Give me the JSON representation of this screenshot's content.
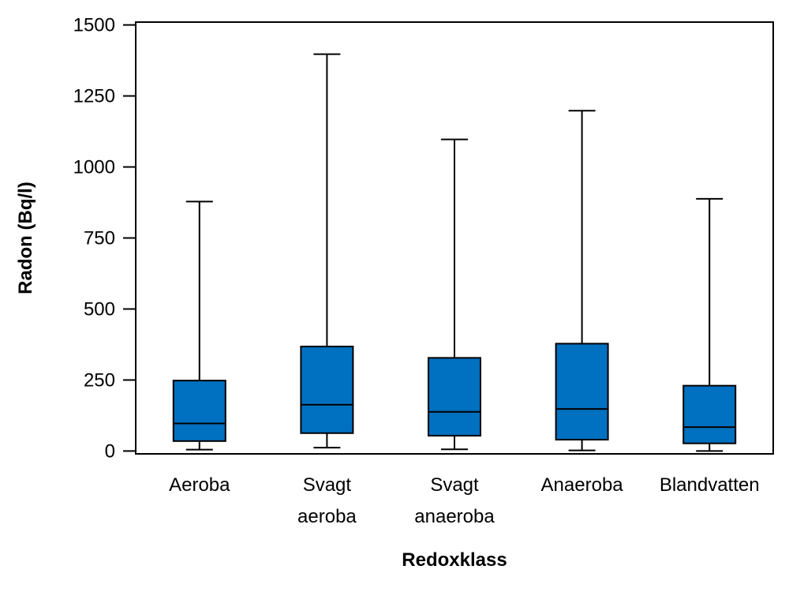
{
  "chart_data": {
    "type": "boxplot",
    "xlabel": "Redoxklass",
    "ylabel": "Radon (Bq/l)",
    "ylim": [
      -10,
      1510
    ],
    "yticks": [
      0,
      250,
      500,
      750,
      1000,
      1250,
      1500
    ],
    "ytick_labels": [
      "0",
      "250",
      "500",
      "750",
      "1000",
      "1250",
      "1500"
    ],
    "categories": [
      {
        "lines": [
          "Aeroba"
        ],
        "min": 5,
        "q1": 35,
        "median": 97,
        "q3": 248,
        "max": 878
      },
      {
        "lines": [
          "Svagt",
          "aeroba"
        ],
        "min": 12,
        "q1": 63,
        "median": 163,
        "q3": 368,
        "max": 1397
      },
      {
        "lines": [
          "Svagt",
          "anaeroba"
        ],
        "min": 6,
        "q1": 54,
        "median": 138,
        "q3": 328,
        "max": 1097
      },
      {
        "lines": [
          "Anaeroba"
        ],
        "min": 2,
        "q1": 40,
        "median": 148,
        "q3": 378,
        "max": 1198
      },
      {
        "lines": [
          "Blandvatten"
        ],
        "min": 0,
        "q1": 27,
        "median": 84,
        "q3": 230,
        "max": 888
      }
    ],
    "colors": {
      "box_fill": "#0070c0",
      "stroke": "#000000"
    }
  }
}
